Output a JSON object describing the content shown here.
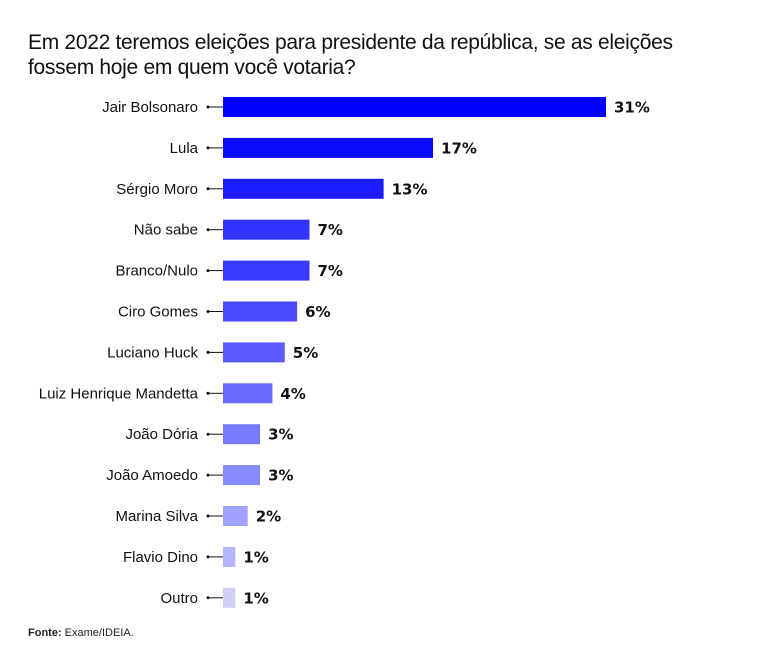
{
  "chart_data": {
    "type": "bar",
    "orientation": "horizontal",
    "title": "Em 2022 teremos eleições para presidente da república, se as eleições fossem hoje em quem você votaria?",
    "xlabel": "",
    "ylabel": "",
    "unit": "%",
    "categories": [
      "Jair Bolsonaro",
      "Lula",
      "Sérgio Moro",
      "Não sabe",
      "Branco/Nulo",
      "Ciro Gomes",
      "Luciano Huck",
      "Luiz Henrique Mandetta",
      "João Dória",
      "João Amoedo",
      "Marina Silva",
      "Flavio Dino",
      "Outro"
    ],
    "values": [
      31,
      17,
      13,
      7,
      7,
      6,
      5,
      4,
      3,
      3,
      2,
      1,
      1
    ],
    "value_labels": [
      "31%",
      "17%",
      "13%",
      "7%",
      "7%",
      "6%",
      "5%",
      "4%",
      "3%",
      "3%",
      "2%",
      "1%",
      "1%"
    ],
    "colors": [
      "#0000ff",
      "#0a0aff",
      "#1d1dff",
      "#3434ff",
      "#3a3aff",
      "#4a4aff",
      "#5b5bff",
      "#6a6aff",
      "#7a7aff",
      "#8888ff",
      "#a0a0ff",
      "#b4b4ff",
      "#cfcff8"
    ],
    "grid": false,
    "legend": "none"
  },
  "source": {
    "label": "Fonte:",
    "text": " Exame/IDEIA."
  }
}
